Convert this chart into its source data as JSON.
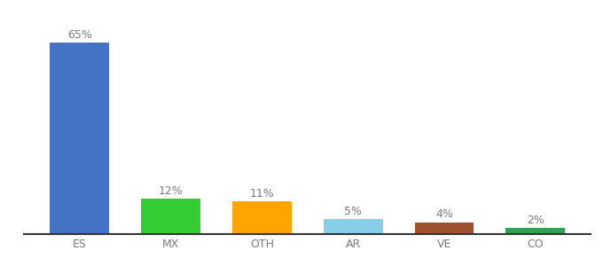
{
  "categories": [
    "ES",
    "MX",
    "OTH",
    "AR",
    "VE",
    "CO"
  ],
  "values": [
    65,
    12,
    11,
    5,
    4,
    2
  ],
  "labels": [
    "65%",
    "12%",
    "11%",
    "5%",
    "4%",
    "2%"
  ],
  "bar_colors": [
    "#4472C4",
    "#33CC33",
    "#FFA500",
    "#87CEEB",
    "#A0522D",
    "#33A055"
  ],
  "background_color": "#ffffff",
  "ylim": [
    0,
    75
  ],
  "label_fontsize": 9,
  "tick_fontsize": 9,
  "tick_color": "#7a7a7a",
  "label_color": "#7a7a7a"
}
